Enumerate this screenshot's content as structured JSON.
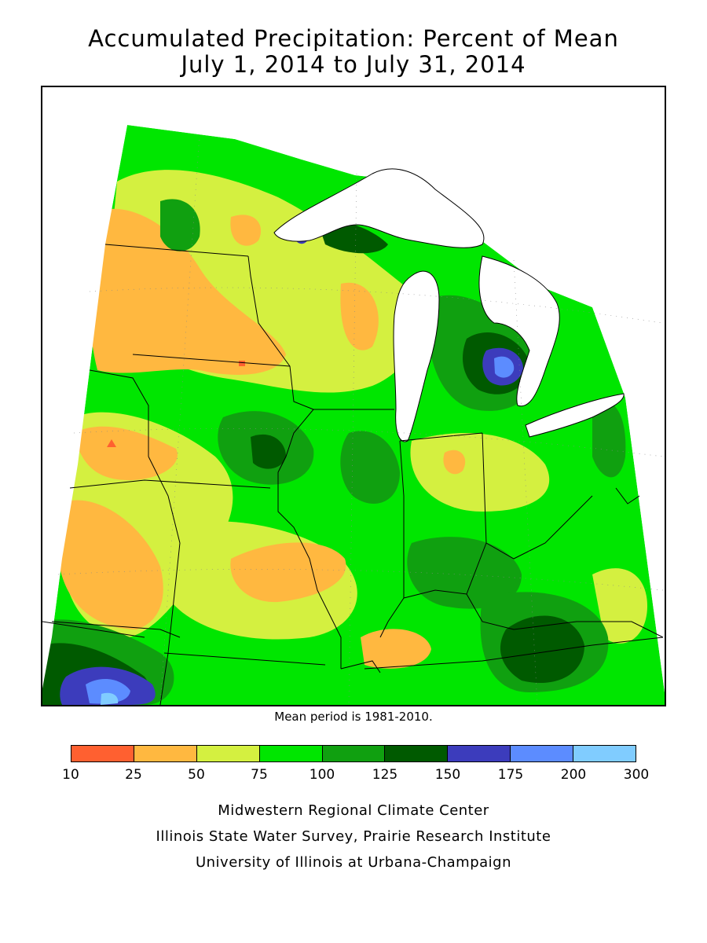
{
  "title_line1": "Accumulated Precipitation: Percent of Mean",
  "title_line2": "July 1, 2014 to July 31, 2014",
  "mean_period": "Mean period is 1981-2010.",
  "legend": {
    "colors": [
      "#ff6030",
      "#ffb840",
      "#d4f040",
      "#00e600",
      "#10a010",
      "#005a00",
      "#3c3cbc",
      "#5c8cff",
      "#80ccff"
    ],
    "ticks": [
      "10",
      "25",
      "50",
      "75",
      "100",
      "125",
      "150",
      "175",
      "200",
      "300"
    ]
  },
  "credits": {
    "line1": "Midwestern Regional Climate Center",
    "line2": "Illinois State Water Survey, Prairie Research Institute",
    "line3": "University of Illinois at Urbana-Champaign"
  }
}
